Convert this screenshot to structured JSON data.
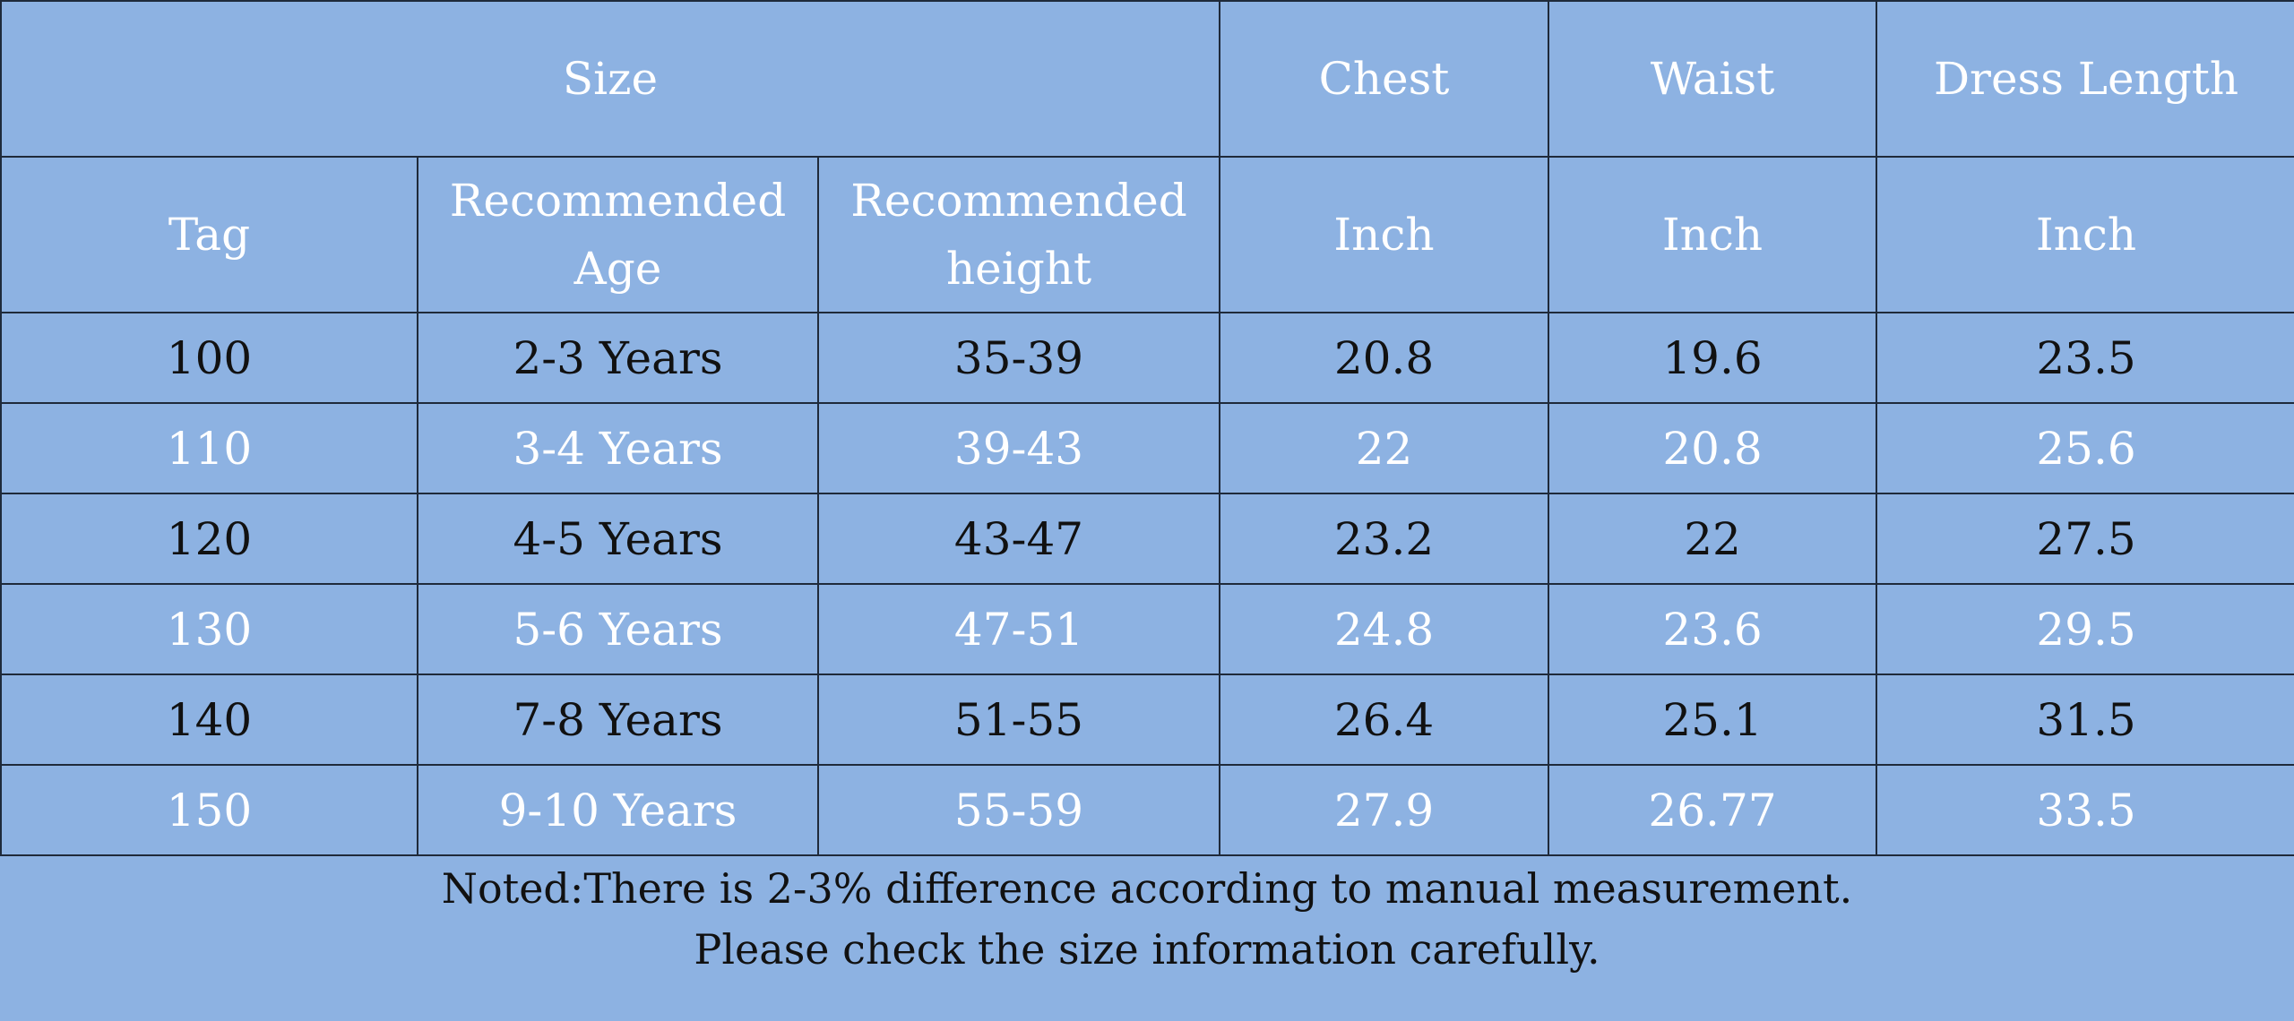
{
  "header": {
    "size": "Size",
    "chest": "Chest",
    "waist": "Waist",
    "dress_length": "Dress Length",
    "tag": "Tag",
    "recommended_age": "Recommended Age",
    "recommended_height": "Recommended height",
    "unit_chest": "Inch",
    "unit_waist": "Inch",
    "unit_dress_length": "Inch"
  },
  "rows": [
    {
      "tag": "100",
      "age": "2-3 Years",
      "height": "35-39",
      "chest": "20.8",
      "waist": "19.6",
      "dress_length": "23.5"
    },
    {
      "tag": "110",
      "age": "3-4 Years",
      "height": "39-43",
      "chest": "22",
      "waist": "20.8",
      "dress_length": "25.6"
    },
    {
      "tag": "120",
      "age": "4-5 Years",
      "height": "43-47",
      "chest": "23.2",
      "waist": "22",
      "dress_length": "27.5"
    },
    {
      "tag": "130",
      "age": "5-6 Years",
      "height": "47-51",
      "chest": "24.8",
      "waist": "23.6",
      "dress_length": "29.5"
    },
    {
      "tag": "140",
      "age": "7-8 Years",
      "height": "51-55",
      "chest": "26.4",
      "waist": "25.1",
      "dress_length": "31.5"
    },
    {
      "tag": "150",
      "age": "9-10 Years",
      "height": "55-59",
      "chest": "27.9",
      "waist": "26.77",
      "dress_length": "33.5"
    }
  ],
  "note": {
    "line1": "Noted:There is 2-3% difference according to manual measurement.",
    "line2": "Please check the size information carefully."
  },
  "colors": {
    "background": "#8db2e2",
    "grid_line": "#1f2a3a",
    "text_dark": "#111111",
    "text_light": "#ffffff"
  }
}
